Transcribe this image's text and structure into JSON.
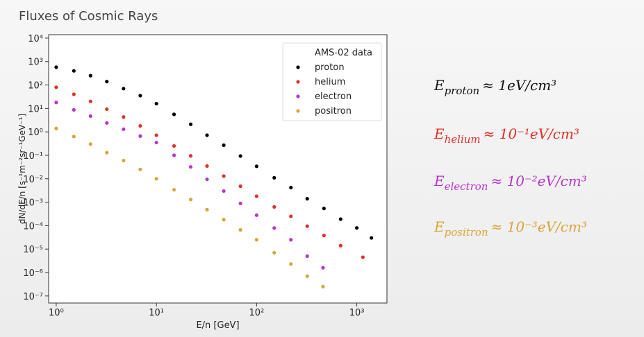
{
  "slide_title": "Fluxes of Cosmic Rays",
  "chart_data": {
    "type": "scatter",
    "xlabel": "E/n [GeV]",
    "ylabel": "dN/dE/n [s⁻¹m⁻²sr⁻¹GeV⁻¹]",
    "xscale": "log",
    "yscale": "log",
    "xlim": [
      0.84,
      2000
    ],
    "ylim": [
      5e-08,
      14000
    ],
    "xticks": [
      {
        "value": 1,
        "label": "10⁰"
      },
      {
        "value": 10,
        "label": "10¹"
      },
      {
        "value": 100,
        "label": "10²"
      },
      {
        "value": 1000,
        "label": "10³"
      }
    ],
    "yticks": [
      {
        "value": 10000,
        "label": "10⁴"
      },
      {
        "value": 1000,
        "label": "10³"
      },
      {
        "value": 100,
        "label": "10²"
      },
      {
        "value": 10,
        "label": "10¹"
      },
      {
        "value": 1,
        "label": "10⁰"
      },
      {
        "value": 0.1,
        "label": "10⁻¹"
      },
      {
        "value": 0.01,
        "label": "10⁻²"
      },
      {
        "value": 0.001,
        "label": "10⁻³"
      },
      {
        "value": 0.0001,
        "label": "10⁻⁴"
      },
      {
        "value": 1e-05,
        "label": "10⁻⁵"
      },
      {
        "value": 1e-06,
        "label": "10⁻⁶"
      },
      {
        "value": 1e-07,
        "label": "10⁻⁷"
      }
    ],
    "legend_title": "AMS-02 data",
    "legend": "upper right",
    "series": [
      {
        "name": "proton",
        "color": "#000000",
        "x": [
          1,
          1.5,
          2.2,
          3.2,
          4.7,
          6.9,
          10,
          15,
          22,
          32,
          47,
          69,
          100,
          150,
          220,
          320,
          470,
          690,
          1000,
          1400
        ],
        "values": [
          575,
          400,
          250,
          140,
          70,
          35,
          16,
          5.6,
          2.1,
          0.72,
          0.27,
          0.093,
          0.034,
          0.011,
          0.0042,
          0.0014,
          0.00054,
          0.00019,
          8e-05,
          3e-05
        ]
      },
      {
        "name": "helium",
        "color": "#e0302a",
        "x": [
          1,
          1.5,
          2.2,
          3.2,
          4.7,
          6.9,
          10,
          15,
          22,
          32,
          47,
          69,
          100,
          150,
          220,
          320,
          470,
          690,
          1150
        ],
        "values": [
          80,
          40,
          20,
          9.3,
          4.3,
          1.8,
          0.72,
          0.25,
          0.095,
          0.035,
          0.013,
          0.0048,
          0.0018,
          0.00063,
          0.00025,
          9.5e-05,
          3.8e-05,
          1.4e-05,
          4.5e-06
        ]
      },
      {
        "name": "electron",
        "color": "#b636c8",
        "x": [
          1,
          1.5,
          2.2,
          3.2,
          4.7,
          6.9,
          10,
          15,
          22,
          32,
          47,
          69,
          100,
          150,
          220,
          320,
          460
        ],
        "values": [
          18,
          8.7,
          4.7,
          2.4,
          1.3,
          0.66,
          0.35,
          0.1,
          0.032,
          0.0095,
          0.003,
          0.00089,
          0.00028,
          7.9e-05,
          2.5e-05,
          5e-06,
          1.6e-06
        ]
      },
      {
        "name": "positron",
        "color": "#d9a43a",
        "x": [
          1,
          1.5,
          2.2,
          3.2,
          4.7,
          6.9,
          10,
          15,
          22,
          32,
          47,
          69,
          100,
          150,
          220,
          320,
          460
        ],
        "values": [
          1.4,
          0.63,
          0.3,
          0.13,
          0.06,
          0.025,
          0.01,
          0.0034,
          0.0013,
          0.00048,
          0.00018,
          6.6e-05,
          2.5e-05,
          7e-06,
          2.3e-06,
          7e-07,
          2.5e-07
        ]
      }
    ]
  },
  "equations": [
    {
      "symbol": "E",
      "subscript": "proton",
      "relation": "≈ 1eV/cm³",
      "color": "#111111"
    },
    {
      "symbol": "E",
      "subscript": "helium",
      "relation": "≈ 10⁻¹eV/cm³",
      "color": "#e0302a"
    },
    {
      "symbol": "E",
      "subscript": "electron",
      "relation": "≈ 10⁻²eV/cm³",
      "color": "#b636c8"
    },
    {
      "symbol": "E",
      "subscript": "positron",
      "relation": "≈ 10⁻³eV/cm³",
      "color": "#d9a43a"
    }
  ]
}
